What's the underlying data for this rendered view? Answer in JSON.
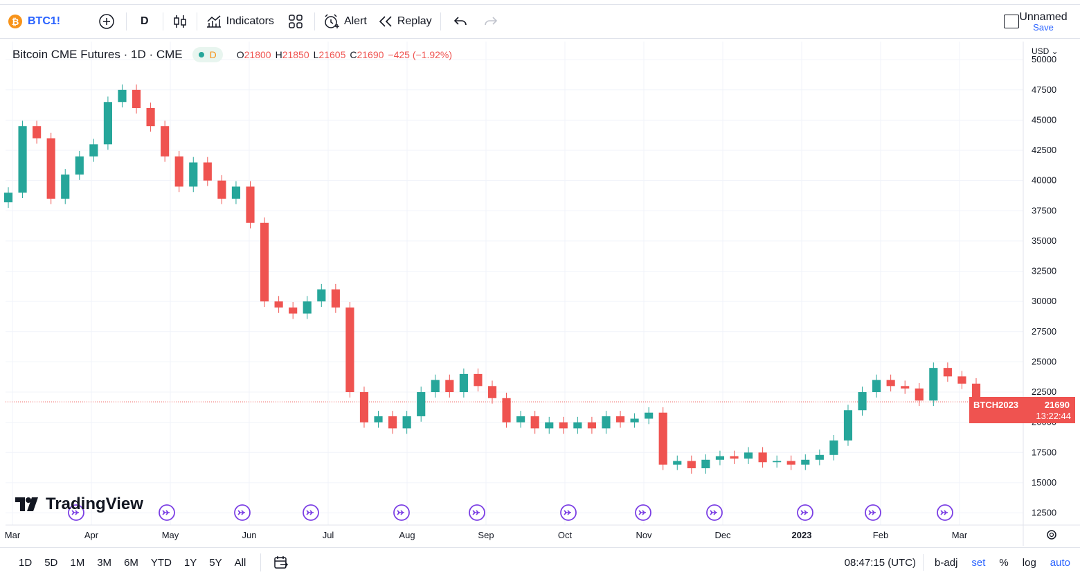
{
  "toolbar": {
    "symbol": "BTC1!",
    "interval": "D",
    "indicators": "Indicators",
    "alert": "Alert",
    "replay": "Replay",
    "layout_name": "Unnamed",
    "save": "Save"
  },
  "legend": {
    "title": "Bitcoin CME Futures · 1D · CME",
    "pill_letter": "D",
    "o_label": "O",
    "o": "21800",
    "h_label": "H",
    "h": "21850",
    "l_label": "L",
    "l": "21605",
    "c_label": "C",
    "c": "21690",
    "change": "−425 (−1.92%)"
  },
  "price_scale": {
    "currency": "USD",
    "ticks": [
      "50000",
      "47500",
      "45000",
      "42500",
      "40000",
      "37500",
      "35000",
      "32500",
      "30000",
      "27500",
      "25000",
      "22500",
      "20000",
      "17500",
      "15000",
      "12500"
    ]
  },
  "last_price": {
    "name": "BTCH2023",
    "value": "21690",
    "countdown": "13:22:44"
  },
  "time_axis": [
    "Mar",
    "Apr",
    "May",
    "Jun",
    "Jul",
    "Aug",
    "Sep",
    "Oct",
    "Nov",
    "Dec",
    "2023",
    "Feb",
    "Mar"
  ],
  "logo": "TradingView",
  "bottom": {
    "ranges": [
      "1D",
      "5D",
      "1M",
      "3M",
      "6M",
      "YTD",
      "1Y",
      "5Y",
      "All"
    ],
    "time": "08:47:15 (UTC)",
    "badj": "b-adj",
    "set": "set",
    "pct": "%",
    "log": "log",
    "auto": "auto"
  },
  "colors": {
    "up": "#26a69a",
    "down": "#ef5350",
    "accent": "#2962ff",
    "event": "#7b3fe4"
  },
  "chart_data": {
    "type": "candlestick",
    "title": "Bitcoin CME Futures · 1D · CME",
    "ylim": [
      11500,
      51500
    ],
    "x_labels": [
      "Mar",
      "Apr",
      "May",
      "Jun",
      "Jul",
      "Aug",
      "Sep",
      "Oct",
      "Nov",
      "Dec",
      "2023",
      "Feb",
      "Mar"
    ],
    "closes": [
      39000,
      44500,
      43500,
      38500,
      40500,
      42000,
      43000,
      46500,
      47500,
      46000,
      44500,
      42000,
      39500,
      41500,
      40000,
      38500,
      39500,
      36500,
      30000,
      29500,
      29000,
      30000,
      31000,
      29500,
      22500,
      20000,
      20500,
      19500,
      20500,
      22500,
      23500,
      22500,
      24000,
      23000,
      22000,
      20000,
      20500,
      19500,
      20000,
      19500,
      20000,
      19500,
      20500,
      20000,
      20300,
      20800,
      16500,
      16800,
      16200,
      16900,
      17200,
      17000,
      17500,
      16700,
      16800,
      16500,
      16900,
      17300,
      18500,
      21000,
      22500,
      23500,
      23000,
      22800,
      21800,
      24500,
      23800,
      23200,
      21690
    ],
    "ohlc_last": {
      "open": 21800,
      "high": 21850,
      "low": 21605,
      "close": 21690,
      "change": -425,
      "change_pct": -1.92
    }
  }
}
